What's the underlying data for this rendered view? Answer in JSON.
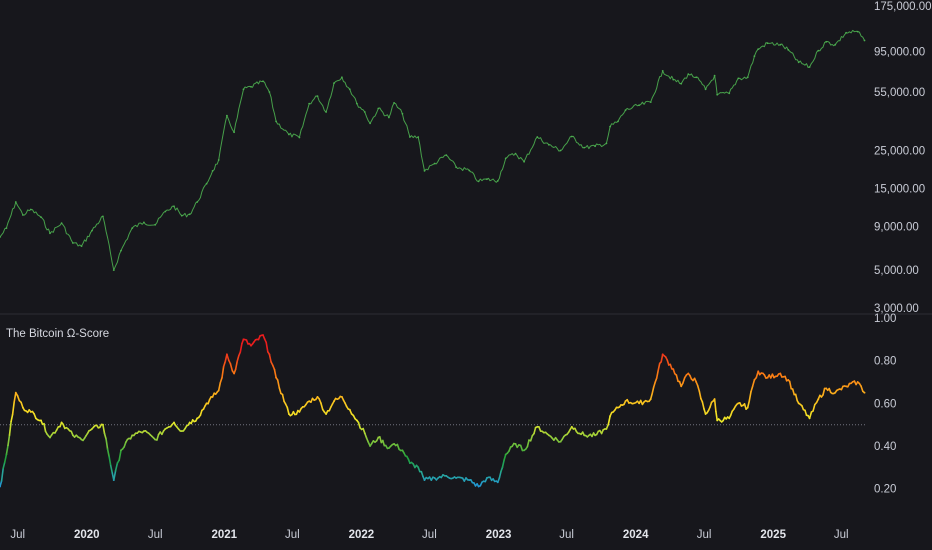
{
  "chart_data": [
    {
      "type": "line",
      "pane": "price",
      "title": "",
      "scale": "log",
      "ylim": [
        3000,
        175000
      ],
      "y_ticks": [
        "175,000.00",
        "95,000.00",
        "55,000.00",
        "25,000.00",
        "15,000.00",
        "9,000.00",
        "5,000.00",
        "3,000.00"
      ],
      "y_tick_values": [
        175000,
        95000,
        55000,
        25000,
        15000,
        9000,
        5000,
        3000
      ],
      "x_range": [
        "2019-05-15",
        "2025-09-05"
      ],
      "series": [
        {
          "color": "#4caf50",
          "x": [
            "2019-05-15",
            "2019-06-01",
            "2019-06-26",
            "2019-07-15",
            "2019-08-05",
            "2019-09-01",
            "2019-09-25",
            "2019-10-26",
            "2019-11-25",
            "2019-12-18",
            "2020-01-15",
            "2020-02-13",
            "2020-03-13",
            "2020-04-01",
            "2020-05-01",
            "2020-06-01",
            "2020-07-01",
            "2020-07-28",
            "2020-08-20",
            "2020-09-10",
            "2020-10-01",
            "2020-10-21",
            "2020-11-15",
            "2020-12-01",
            "2020-12-17",
            "2021-01-08",
            "2021-01-27",
            "2021-02-21",
            "2021-03-13",
            "2021-04-14",
            "2021-05-01",
            "2021-05-19",
            "2021-06-22",
            "2021-07-20",
            "2021-08-15",
            "2021-09-06",
            "2021-09-29",
            "2021-10-20",
            "2021-11-10",
            "2021-12-01",
            "2021-12-20",
            "2022-01-10",
            "2022-01-24",
            "2022-02-15",
            "2022-03-15",
            "2022-03-29",
            "2022-04-20",
            "2022-05-10",
            "2022-06-01",
            "2022-06-18",
            "2022-07-15",
            "2022-08-15",
            "2022-09-10",
            "2022-10-15",
            "2022-11-09",
            "2022-12-01",
            "2022-12-30",
            "2023-01-20",
            "2023-02-15",
            "2023-03-10",
            "2023-04-14",
            "2023-05-15",
            "2023-06-15",
            "2023-07-15",
            "2023-08-17",
            "2023-09-15",
            "2023-10-15",
            "2023-10-25",
            "2023-11-15",
            "2023-12-05",
            "2024-01-10",
            "2024-02-10",
            "2024-03-13",
            "2024-04-10",
            "2024-05-01",
            "2024-05-20",
            "2024-06-10",
            "2024-07-05",
            "2024-07-29",
            "2024-08-05",
            "2024-09-06",
            "2024-09-30",
            "2024-10-25",
            "2024-11-12",
            "2024-11-22",
            "2024-12-17",
            "2025-01-20",
            "2025-02-10",
            "2025-03-10",
            "2025-04-08",
            "2025-05-01",
            "2025-05-22",
            "2025-06-15",
            "2025-07-14",
            "2025-08-14",
            "2025-09-01"
          ],
          "y": [
            7800,
            8800,
            12500,
            10500,
            11300,
            10200,
            8200,
            9400,
            7200,
            6900,
            8500,
            10300,
            5000,
            6500,
            8800,
            9500,
            9200,
            11000,
            11800,
            10400,
            10600,
            12500,
            16000,
            19000,
            22000,
            40000,
            32000,
            57000,
            59000,
            63500,
            55000,
            37000,
            31000,
            29800,
            47000,
            52000,
            42000,
            62000,
            67000,
            57000,
            47000,
            42000,
            36000,
            44000,
            39000,
            47500,
            41000,
            30000,
            30000,
            19000,
            21000,
            23500,
            20000,
            19100,
            16500,
            17000,
            16600,
            22500,
            24000,
            21500,
            30000,
            27000,
            25000,
            30200,
            26000,
            26500,
            27500,
            34500,
            37000,
            43000,
            46000,
            48000,
            73000,
            65000,
            61500,
            70000,
            67000,
            57000,
            68500,
            53000,
            54000,
            66000,
            67000,
            89000,
            98000,
            106000,
            104000,
            97000,
            82000,
            77000,
            96000,
            108000,
            104000,
            122000,
            124000,
            110000
          ]
        }
      ]
    },
    {
      "type": "line",
      "pane": "indicator",
      "title": "The Bitcoin Ω-Score",
      "ylim": [
        0.1,
        1.0
      ],
      "y_ticks": [
        "1.00",
        "0.80",
        "0.60",
        "0.40",
        "0.20"
      ],
      "y_tick_values": [
        1.0,
        0.8,
        0.6,
        0.4,
        0.2
      ],
      "reference_line": 0.5,
      "color_scale": "value-based: blue (low) → green → yellow → orange → red (high)",
      "x_range": [
        "2019-05-15",
        "2025-09-05"
      ],
      "series": [
        {
          "x": [
            "2019-05-15",
            "2019-06-01",
            "2019-06-26",
            "2019-07-15",
            "2019-08-05",
            "2019-09-01",
            "2019-09-25",
            "2019-10-26",
            "2019-11-25",
            "2019-12-18",
            "2020-01-15",
            "2020-02-13",
            "2020-03-13",
            "2020-04-01",
            "2020-05-01",
            "2020-06-01",
            "2020-07-01",
            "2020-07-28",
            "2020-08-20",
            "2020-09-10",
            "2020-10-01",
            "2020-10-21",
            "2020-11-15",
            "2020-12-01",
            "2020-12-17",
            "2021-01-08",
            "2021-01-27",
            "2021-02-21",
            "2021-03-13",
            "2021-04-14",
            "2021-05-01",
            "2021-05-19",
            "2021-06-22",
            "2021-07-20",
            "2021-08-15",
            "2021-09-06",
            "2021-09-29",
            "2021-10-20",
            "2021-11-10",
            "2021-12-01",
            "2021-12-20",
            "2022-01-10",
            "2022-01-24",
            "2022-02-15",
            "2022-03-15",
            "2022-03-29",
            "2022-04-20",
            "2022-05-10",
            "2022-06-01",
            "2022-06-18",
            "2022-07-15",
            "2022-08-15",
            "2022-09-10",
            "2022-10-15",
            "2022-11-09",
            "2022-12-01",
            "2022-12-30",
            "2023-01-20",
            "2023-02-15",
            "2023-03-10",
            "2023-04-14",
            "2023-05-15",
            "2023-06-15",
            "2023-07-15",
            "2023-08-17",
            "2023-09-15",
            "2023-10-15",
            "2023-10-25",
            "2023-11-15",
            "2023-12-05",
            "2024-01-10",
            "2024-02-10",
            "2024-03-13",
            "2024-04-10",
            "2024-05-01",
            "2024-05-20",
            "2024-06-10",
            "2024-07-05",
            "2024-07-29",
            "2024-08-05",
            "2024-09-06",
            "2024-09-30",
            "2024-10-25",
            "2024-11-12",
            "2024-11-22",
            "2024-12-17",
            "2025-01-20",
            "2025-02-10",
            "2025-03-10",
            "2025-04-08",
            "2025-05-01",
            "2025-05-22",
            "2025-06-15",
            "2025-07-14",
            "2025-08-14",
            "2025-09-01"
          ],
          "y": [
            0.21,
            0.36,
            0.65,
            0.58,
            0.56,
            0.52,
            0.44,
            0.51,
            0.45,
            0.43,
            0.48,
            0.5,
            0.24,
            0.38,
            0.45,
            0.47,
            0.43,
            0.48,
            0.51,
            0.47,
            0.51,
            0.53,
            0.6,
            0.63,
            0.66,
            0.83,
            0.74,
            0.9,
            0.87,
            0.92,
            0.83,
            0.72,
            0.55,
            0.56,
            0.61,
            0.63,
            0.55,
            0.61,
            0.63,
            0.57,
            0.52,
            0.46,
            0.4,
            0.44,
            0.39,
            0.41,
            0.38,
            0.32,
            0.3,
            0.24,
            0.25,
            0.26,
            0.25,
            0.24,
            0.21,
            0.25,
            0.23,
            0.36,
            0.41,
            0.38,
            0.49,
            0.45,
            0.42,
            0.49,
            0.45,
            0.45,
            0.48,
            0.54,
            0.58,
            0.61,
            0.6,
            0.62,
            0.83,
            0.76,
            0.68,
            0.74,
            0.7,
            0.55,
            0.62,
            0.52,
            0.53,
            0.6,
            0.58,
            0.71,
            0.75,
            0.72,
            0.74,
            0.71,
            0.6,
            0.53,
            0.62,
            0.67,
            0.65,
            0.68,
            0.7,
            0.65
          ]
        }
      ]
    }
  ],
  "x_axis": {
    "labels": [
      {
        "text": "Jul",
        "date": "2019-07-01",
        "bold": false
      },
      {
        "text": "2020",
        "date": "2020-01-01",
        "bold": true
      },
      {
        "text": "Jul",
        "date": "2020-07-01",
        "bold": false
      },
      {
        "text": "2021",
        "date": "2021-01-01",
        "bold": true
      },
      {
        "text": "Jul",
        "date": "2021-07-01",
        "bold": false
      },
      {
        "text": "2022",
        "date": "2022-01-01",
        "bold": true
      },
      {
        "text": "Jul",
        "date": "2022-07-01",
        "bold": false
      },
      {
        "text": "2023",
        "date": "2023-01-01",
        "bold": true
      },
      {
        "text": "Jul",
        "date": "2023-07-01",
        "bold": false
      },
      {
        "text": "2024",
        "date": "2024-01-01",
        "bold": true
      },
      {
        "text": "Jul",
        "date": "2024-07-01",
        "bold": false
      },
      {
        "text": "2025",
        "date": "2025-01-01",
        "bold": true
      },
      {
        "text": "Jul",
        "date": "2025-07-01",
        "bold": false
      }
    ]
  },
  "colors": {
    "background": "#17171c",
    "price_line": "#4caf50",
    "separator": "#2c2d35",
    "reference_line": "#9a9da8",
    "tick_text": "#c9ccd6"
  }
}
